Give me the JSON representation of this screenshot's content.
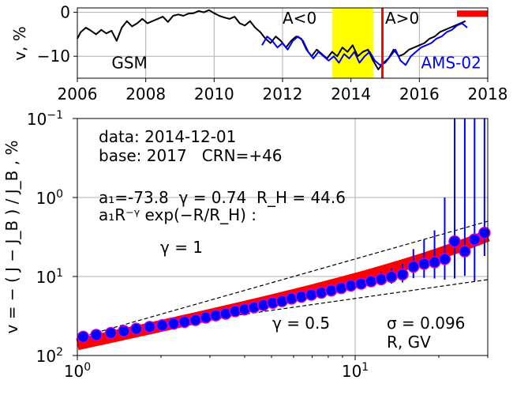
{
  "chart_data": [
    {
      "type": "line",
      "ylabel": "v, %",
      "xlim": [
        2006,
        2018
      ],
      "ylim": [
        -15,
        1
      ],
      "x_ticks": [
        2006,
        2008,
        2010,
        2012,
        2014,
        2016,
        2018
      ],
      "x_tick_labels": [
        "2006",
        "2008",
        "2010",
        "2012",
        "2014",
        "2016",
        "2018"
      ],
      "y_ticks": [
        0,
        -10
      ],
      "y_tick_labels": [
        "0",
        "−10"
      ],
      "grid": true,
      "shaded_interval": {
        "from": 2013.45,
        "to": 2014.65,
        "color": "#ffff00"
      },
      "vertical_line": {
        "x": 2014.92,
        "color": "#ff0000"
      },
      "base_bar": {
        "from": 2017.1,
        "to": 2018.0,
        "y": -0.3,
        "color": "#ff0000"
      },
      "annotations": [
        {
          "text": "A<0",
          "x": 2012.0,
          "y": -1.3
        },
        {
          "text": "A>0",
          "x": 2015.0,
          "y": -1.3
        },
        {
          "text": "GSM",
          "x": 2007.0,
          "y": -11.5
        },
        {
          "text": "AMS-02",
          "x": 2016.05,
          "y": -11.5,
          "color": "#0000ff"
        }
      ],
      "series": [
        {
          "name": "GSM",
          "color": "#000000",
          "x": [
            2006.0,
            2006.1,
            2006.25,
            2006.4,
            2006.55,
            2006.7,
            2006.85,
            2007.0,
            2007.15,
            2007.3,
            2007.45,
            2007.6,
            2007.75,
            2007.9,
            2008.05,
            2008.2,
            2008.35,
            2008.5,
            2008.65,
            2008.8,
            2008.95,
            2009.1,
            2009.25,
            2009.4,
            2009.55,
            2009.7,
            2009.85,
            2010.0,
            2010.15,
            2010.3,
            2010.45,
            2010.6,
            2010.75,
            2010.9,
            2011.05,
            2011.2,
            2011.35,
            2011.5,
            2011.65,
            2011.8,
            2011.95,
            2012.1,
            2012.25,
            2012.4,
            2012.55,
            2012.7,
            2012.85,
            2013.0,
            2013.15,
            2013.3,
            2013.45,
            2013.6,
            2013.75,
            2013.9,
            2014.05,
            2014.2,
            2014.35,
            2014.5,
            2014.65,
            2014.8,
            2014.95,
            2015.1,
            2015.25,
            2015.4,
            2015.55,
            2015.7,
            2015.85,
            2016.0,
            2016.15,
            2016.3,
            2016.45,
            2016.6,
            2016.75,
            2016.9,
            2017.05,
            2017.2,
            2017.35
          ],
          "y": [
            -6.0,
            -4.5,
            -3.5,
            -4.2,
            -5.0,
            -4.0,
            -4.8,
            -4.2,
            -6.5,
            -3.5,
            -2.0,
            -3.2,
            -2.5,
            -1.5,
            -2.5,
            -2.0,
            -1.5,
            -1.0,
            -2.2,
            -0.8,
            -0.5,
            -0.8,
            -0.3,
            -0.2,
            0.3,
            0.0,
            0.5,
            -0.2,
            -0.8,
            -1.2,
            -1.5,
            -1.0,
            -2.5,
            -3.0,
            -2.0,
            -3.5,
            -4.5,
            -6.0,
            -7.0,
            -5.5,
            -6.5,
            -8.0,
            -6.5,
            -5.5,
            -6.0,
            -8.5,
            -10.0,
            -8.5,
            -9.5,
            -10.5,
            -9.0,
            -10.0,
            -8.0,
            -9.0,
            -7.5,
            -10.0,
            -9.0,
            -8.5,
            -11.0,
            -13.0,
            -11.5,
            -10.5,
            -8.5,
            -10.0,
            -9.5,
            -8.5,
            -8.0,
            -7.5,
            -7.0,
            -6.0,
            -5.5,
            -4.5,
            -4.0,
            -3.5,
            -3.0,
            -2.5,
            -2.0
          ]
        },
        {
          "name": "AMS-02",
          "color": "#0000ff",
          "x": [
            2011.4,
            2011.55,
            2011.7,
            2011.85,
            2012.0,
            2012.15,
            2012.3,
            2012.45,
            2012.6,
            2012.75,
            2012.9,
            2013.05,
            2013.2,
            2013.35,
            2013.5,
            2013.65,
            2013.8,
            2013.95,
            2014.1,
            2014.25,
            2014.4,
            2014.55,
            2014.7,
            2014.85,
            2015.0,
            2015.15,
            2015.3,
            2015.45,
            2015.6,
            2015.75,
            2015.9,
            2016.05,
            2016.2,
            2016.35,
            2016.5,
            2016.65,
            2016.8,
            2016.95,
            2017.1,
            2017.25,
            2017.4
          ],
          "y": [
            -7.5,
            -5.5,
            -6.5,
            -8.0,
            -7.0,
            -8.5,
            -6.5,
            -5.5,
            -6.5,
            -9.0,
            -10.5,
            -9.0,
            -10.0,
            -11.0,
            -10.0,
            -11.5,
            -9.5,
            -10.5,
            -9.0,
            -11.5,
            -10.0,
            -9.0,
            -11.0,
            -12.0,
            -11.5,
            -10.0,
            -8.5,
            -11.0,
            -12.0,
            -10.0,
            -9.0,
            -8.0,
            -7.5,
            -7.0,
            -6.0,
            -5.5,
            -4.5,
            -4.0,
            -3.0,
            -2.5,
            -3.5
          ]
        }
      ]
    },
    {
      "type": "scatter",
      "xscale": "log",
      "yscale": "log",
      "y_inverted": true,
      "xlim": [
        1.0,
        30.0
      ],
      "ylim": [
        0.1,
        100.0
      ],
      "x_ticks": [
        1,
        10
      ],
      "y_ticks": [
        0.1,
        1,
        10,
        100
      ],
      "grid": true,
      "ylabel": "v = − ( J − J_B ) / J_B , %",
      "xlabel": "R, GV",
      "text_block": {
        "line1": "data: 2014-12-01",
        "line2": "base: 2017   CRN=+46",
        "fit_params": "a₁=-73.8  γ = 0.74  R_H = 44.6",
        "model": "a₁R⁻ᵞ exp(−R/R_H) :",
        "gamma1": "γ = 1",
        "gamma05": "γ = 0.5",
        "sigma": "σ = 0.096"
      },
      "fit": {
        "a1": -73.8,
        "gamma": 0.74,
        "RH": 44.6,
        "color": "#ff0000"
      },
      "reference_lines": [
        {
          "label": "γ = 1",
          "gamma": 1.0,
          "y_at_R1": 60,
          "style": "dashed"
        },
        {
          "label": "γ = 0.5",
          "gamma": 0.5,
          "y_at_R1": 60,
          "style": "dashed"
        }
      ],
      "points": {
        "color": "#0000ff",
        "edge_color": "#cc00cc",
        "x": [
          1.05,
          1.17,
          1.32,
          1.47,
          1.63,
          1.82,
          2.02,
          2.22,
          2.43,
          2.66,
          2.9,
          3.15,
          3.42,
          3.7,
          4.0,
          4.32,
          4.67,
          5.05,
          5.45,
          5.9,
          6.4,
          6.95,
          7.55,
          8.2,
          8.9,
          9.65,
          10.5,
          11.4,
          12.4,
          13.5,
          14.8,
          16.2,
          17.7,
          19.3,
          21.0,
          22.8,
          24.8,
          26.9,
          29.2
        ],
        "y": [
          58,
          55,
          52,
          49,
          46,
          43.5,
          41.5,
          39.5,
          37.5,
          35.5,
          33,
          31,
          29.5,
          27.5,
          26,
          24.5,
          23,
          21.5,
          20.5,
          19,
          18,
          17,
          16,
          15,
          14,
          13,
          12.3,
          11.5,
          10.8,
          10.1,
          9.4,
          7.5,
          6.9,
          6.6,
          6.0,
          3.6,
          4.8,
          3.4,
          2.8
        ],
        "err": [
          0.5,
          0.5,
          0.5,
          0.5,
          0.5,
          0.5,
          0.5,
          0.6,
          0.6,
          0.6,
          0.6,
          0.6,
          0.6,
          0.7,
          0.7,
          0.7,
          0.8,
          0.8,
          0.9,
          1.0,
          1.0,
          1.1,
          1.2,
          1.3,
          1.4,
          1.5,
          1.7,
          1.8,
          2.0,
          2.2,
          2.5,
          3.0,
          3.5,
          4.0,
          5.0,
          7.0,
          5.0,
          8.0,
          2.7
        ]
      }
    }
  ]
}
